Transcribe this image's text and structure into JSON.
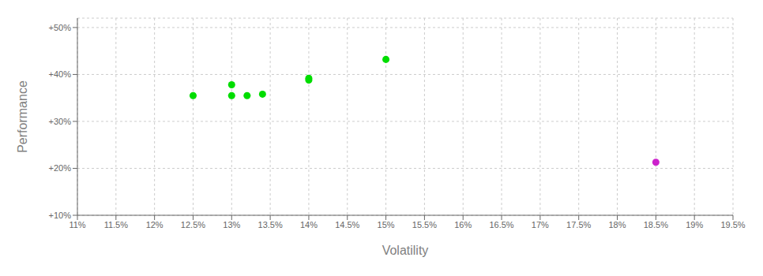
{
  "chart_data": {
    "type": "scatter",
    "xlabel": "Volatility",
    "ylabel": "Performance",
    "xlim": [
      0.11,
      0.195
    ],
    "ylim": [
      0.1,
      0.52
    ],
    "xticks": [
      {
        "value": 0.11,
        "label": "11%"
      },
      {
        "value": 0.115,
        "label": "11.5%"
      },
      {
        "value": 0.12,
        "label": "12%"
      },
      {
        "value": 0.125,
        "label": "12.5%"
      },
      {
        "value": 0.13,
        "label": "13%"
      },
      {
        "value": 0.135,
        "label": "13.5%"
      },
      {
        "value": 0.14,
        "label": "14%"
      },
      {
        "value": 0.145,
        "label": "14.5%"
      },
      {
        "value": 0.15,
        "label": "15%"
      },
      {
        "value": 0.155,
        "label": "15.5%"
      },
      {
        "value": 0.16,
        "label": "16%"
      },
      {
        "value": 0.165,
        "label": "16.5%"
      },
      {
        "value": 0.17,
        "label": "17%"
      },
      {
        "value": 0.175,
        "label": "17.5%"
      },
      {
        "value": 0.18,
        "label": "18%"
      },
      {
        "value": 0.185,
        "label": "18.5%"
      },
      {
        "value": 0.19,
        "label": "19%"
      },
      {
        "value": 0.195,
        "label": "19.5%"
      }
    ],
    "yticks": [
      {
        "value": 0.1,
        "label": "+10%"
      },
      {
        "value": 0.2,
        "label": "+20%"
      },
      {
        "value": 0.3,
        "label": "+30%"
      },
      {
        "value": 0.4,
        "label": "+40%"
      },
      {
        "value": 0.5,
        "label": "+50%"
      }
    ],
    "grid": true,
    "series": [
      {
        "color": "#00dd00",
        "marker": "circle",
        "x": [
          0.125,
          0.13,
          0.13,
          0.132,
          0.134,
          0.14,
          0.14,
          0.15
        ],
        "values": [
          0.355,
          0.378,
          0.355,
          0.355,
          0.358,
          0.388,
          0.392,
          0.432
        ]
      },
      {
        "color": "#cc22cc",
        "marker": "circle",
        "x": [
          0.185
        ],
        "values": [
          0.213
        ]
      }
    ]
  }
}
